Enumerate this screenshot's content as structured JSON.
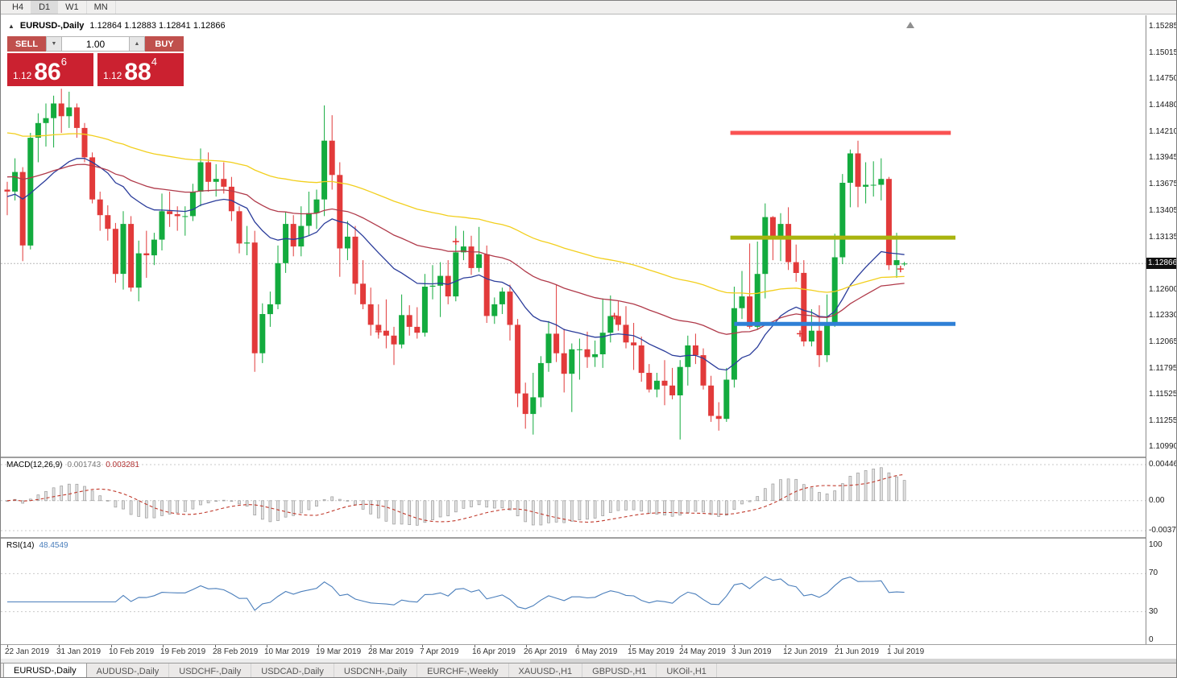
{
  "toolbar": {
    "timeframes": [
      "H4",
      "D1",
      "W1",
      "MN"
    ],
    "active": "D1"
  },
  "chart_header": {
    "collapse_icon": "▲",
    "symbol": "EURUSD-,Daily",
    "ohlc": "1.12864 1.12883 1.12841 1.12866"
  },
  "trade_panel": {
    "sell_label": "SELL",
    "buy_label": "BUY",
    "volume_value": "1.00",
    "spin_down_icon": "▼",
    "spin_up_icon": "▲",
    "sell_price": {
      "small": "1.12",
      "big": "86",
      "sup": "6"
    },
    "buy_price": {
      "small": "1.12",
      "big": "88",
      "sup": "4"
    }
  },
  "tabs": {
    "items": [
      "EURUSD-,Daily",
      "AUDUSD-,Daily",
      "USDCHF-,Daily",
      "USDCAD-,Daily",
      "USDCNH-,Daily",
      "EURCHF-,Weekly",
      "XAUUSD-,H1",
      "GBPUSD-,H1",
      "UKOil-,H1"
    ],
    "active_index": 0
  },
  "colors": {
    "bull": "#13ab3e",
    "bear": "#e23a3a",
    "ma_fast": "#2b3d9b",
    "ma_mid": "#b03a4a",
    "ma_slow": "#f2cf1d",
    "level_resistance": "#fa5252",
    "level_mid": "#a9b40e",
    "level_support": "#2f80d6",
    "macd_signal": "#c0392b",
    "rsi_line": "#4a7ebb",
    "marker": "#e03131"
  },
  "chart_data": {
    "type": "candlestick",
    "symbol": "EURUSD-",
    "timeframe": "Daily",
    "ohlc_display": {
      "open": "1.12864",
      "high": "1.12883",
      "low": "1.12841",
      "close": "1.12866"
    },
    "current_price": 1.12866,
    "y_axis": {
      "max": 1.154,
      "min": 1.1092,
      "current_label": "1.12866",
      "tick_labels": [
        "1.15285",
        "1.15015",
        "1.14750",
        "1.14480",
        "1.14210",
        "1.13945",
        "1.13675",
        "1.13405",
        "1.13135",
        "1.12600",
        "1.12330",
        "1.12065",
        "1.11795",
        "1.11525",
        "1.11255",
        "1.10990"
      ]
    },
    "x_axis": {
      "tick_labels": [
        "22 Jan 2019",
        "31 Jan 2019",
        "10 Feb 2019",
        "19 Feb 2019",
        "28 Feb 2019",
        "10 Mar 2019",
        "19 Mar 2019",
        "28 Mar 2019",
        "7 Apr 2019",
        "16 Apr 2019",
        "26 Apr 2019",
        "6 May 2019",
        "15 May 2019",
        "24 May 2019",
        "3 Jun 2019",
        "12 Jun 2019",
        "21 Jun 2019",
        "1 Jul 2019"
      ]
    },
    "candles": [
      [
        1.1362,
        1.137,
        1.1336,
        1.136
      ],
      [
        1.136,
        1.1394,
        1.1351,
        1.138
      ],
      [
        1.138,
        1.1385,
        1.1289,
        1.1305
      ],
      [
        1.1305,
        1.142,
        1.1301,
        1.1415
      ],
      [
        1.1415,
        1.144,
        1.139,
        1.143
      ],
      [
        1.143,
        1.145,
        1.1406,
        1.1435
      ],
      [
        1.1435,
        1.1458,
        1.1405,
        1.145
      ],
      [
        1.145,
        1.1465,
        1.142,
        1.1437
      ],
      [
        1.1437,
        1.1462,
        1.1425,
        1.1446
      ],
      [
        1.1446,
        1.145,
        1.1415,
        1.1425
      ],
      [
        1.1425,
        1.143,
        1.139,
        1.1395
      ],
      [
        1.1395,
        1.14,
        1.1348,
        1.1352
      ],
      [
        1.1352,
        1.136,
        1.132,
        1.1336
      ],
      [
        1.1336,
        1.1346,
        1.131,
        1.1322
      ],
      [
        1.1322,
        1.1328,
        1.1267,
        1.1276
      ],
      [
        1.1276,
        1.134,
        1.126,
        1.1327
      ],
      [
        1.1327,
        1.1335,
        1.1258,
        1.1262
      ],
      [
        1.1262,
        1.131,
        1.1248,
        1.1297
      ],
      [
        1.1297,
        1.132,
        1.1272,
        1.1295
      ],
      [
        1.1295,
        1.1318,
        1.1285,
        1.1311
      ],
      [
        1.1311,
        1.1358,
        1.13,
        1.134
      ],
      [
        1.134,
        1.136,
        1.1324,
        1.1337
      ],
      [
        1.1337,
        1.1345,
        1.132,
        1.1335
      ],
      [
        1.1335,
        1.1345,
        1.1315,
        1.1335
      ],
      [
        1.1335,
        1.1368,
        1.133,
        1.136
      ],
      [
        1.136,
        1.1404,
        1.1345,
        1.139
      ],
      [
        1.139,
        1.14,
        1.136,
        1.137
      ],
      [
        1.137,
        1.1388,
        1.1355,
        1.1373
      ],
      [
        1.1373,
        1.139,
        1.1358,
        1.1365
      ],
      [
        1.1365,
        1.1375,
        1.133,
        1.134
      ],
      [
        1.134,
        1.1345,
        1.1297,
        1.1307
      ],
      [
        1.1307,
        1.1325,
        1.1295,
        1.1308
      ],
      [
        1.1308,
        1.132,
        1.1176,
        1.1195
      ],
      [
        1.1195,
        1.1246,
        1.1185,
        1.1235
      ],
      [
        1.1235,
        1.1258,
        1.1222,
        1.1245
      ],
      [
        1.1245,
        1.1305,
        1.124,
        1.1287
      ],
      [
        1.1287,
        1.1339,
        1.1277,
        1.1327
      ],
      [
        1.1327,
        1.1336,
        1.1294,
        1.1304
      ],
      [
        1.1304,
        1.1345,
        1.1294,
        1.1325
      ],
      [
        1.1325,
        1.136,
        1.1315,
        1.1338
      ],
      [
        1.1338,
        1.1362,
        1.1322,
        1.1352
      ],
      [
        1.1352,
        1.1448,
        1.1335,
        1.1412
      ],
      [
        1.1412,
        1.1438,
        1.1362,
        1.1377
      ],
      [
        1.1377,
        1.139,
        1.1273,
        1.1302
      ],
      [
        1.1302,
        1.133,
        1.129,
        1.1314
      ],
      [
        1.1314,
        1.1325,
        1.1255,
        1.1266
      ],
      [
        1.1266,
        1.129,
        1.124,
        1.1245
      ],
      [
        1.1245,
        1.1262,
        1.1213,
        1.1224
      ],
      [
        1.1224,
        1.1245,
        1.121,
        1.1218
      ],
      [
        1.1218,
        1.125,
        1.12,
        1.1213
      ],
      [
        1.1213,
        1.1222,
        1.1183,
        1.1204
      ],
      [
        1.1204,
        1.1255,
        1.12,
        1.1234
      ],
      [
        1.1234,
        1.1244,
        1.1213,
        1.1222
      ],
      [
        1.1222,
        1.1242,
        1.121,
        1.1216
      ],
      [
        1.1216,
        1.1276,
        1.1212,
        1.1263
      ],
      [
        1.1263,
        1.1285,
        1.125,
        1.1264
      ],
      [
        1.1264,
        1.1288,
        1.1232,
        1.1274
      ],
      [
        1.1274,
        1.129,
        1.1245,
        1.1253
      ],
      [
        1.1253,
        1.1325,
        1.1248,
        1.1298
      ],
      [
        1.1298,
        1.132,
        1.129,
        1.1304
      ],
      [
        1.1304,
        1.1315,
        1.1275,
        1.1282
      ],
      [
        1.1282,
        1.1324,
        1.1278,
        1.1296
      ],
      [
        1.1296,
        1.1305,
        1.1226,
        1.1233
      ],
      [
        1.1233,
        1.1252,
        1.1225,
        1.1245
      ],
      [
        1.1245,
        1.1262,
        1.1235,
        1.1258
      ],
      [
        1.1258,
        1.1265,
        1.1208,
        1.1224
      ],
      [
        1.1224,
        1.123,
        1.114,
        1.1154
      ],
      [
        1.1154,
        1.1165,
        1.1118,
        1.1133
      ],
      [
        1.1133,
        1.1175,
        1.1112,
        1.115
      ],
      [
        1.115,
        1.1192,
        1.114,
        1.1185
      ],
      [
        1.1185,
        1.1228,
        1.1176,
        1.1215
      ],
      [
        1.1215,
        1.1265,
        1.1186,
        1.1195
      ],
      [
        1.1195,
        1.122,
        1.1155,
        1.1174
      ],
      [
        1.1174,
        1.1205,
        1.1135,
        1.1199
      ],
      [
        1.1199,
        1.121,
        1.1168,
        1.1199
      ],
      [
        1.1199,
        1.1217,
        1.118,
        1.1191
      ],
      [
        1.1191,
        1.1208,
        1.1181,
        1.1194
      ],
      [
        1.1194,
        1.1251,
        1.118,
        1.1216
      ],
      [
        1.1216,
        1.1254,
        1.1206,
        1.1233
      ],
      [
        1.1233,
        1.1248,
        1.1218,
        1.1224
      ],
      [
        1.1224,
        1.1243,
        1.12,
        1.1206
      ],
      [
        1.1206,
        1.1226,
        1.1178,
        1.1203
      ],
      [
        1.1203,
        1.1212,
        1.1166,
        1.1175
      ],
      [
        1.1175,
        1.1184,
        1.1155,
        1.1158
      ],
      [
        1.1158,
        1.1175,
        1.115,
        1.1167
      ],
      [
        1.1167,
        1.1188,
        1.1142,
        1.1162
      ],
      [
        1.1162,
        1.118,
        1.1148,
        1.1152
      ],
      [
        1.1152,
        1.1188,
        1.1107,
        1.1181
      ],
      [
        1.1181,
        1.1213,
        1.1162,
        1.1203
      ],
      [
        1.1203,
        1.1215,
        1.1184,
        1.1193
      ],
      [
        1.1193,
        1.12,
        1.1158,
        1.1162
      ],
      [
        1.1162,
        1.1172,
        1.1125,
        1.1131
      ],
      [
        1.1131,
        1.1145,
        1.1116,
        1.1128
      ],
      [
        1.1128,
        1.118,
        1.1125,
        1.1168
      ],
      [
        1.1168,
        1.1263,
        1.116,
        1.1241
      ],
      [
        1.1241,
        1.1279,
        1.123,
        1.1253
      ],
      [
        1.1253,
        1.1307,
        1.122,
        1.1222
      ],
      [
        1.1222,
        1.1309,
        1.1219,
        1.1276
      ],
      [
        1.1276,
        1.1348,
        1.1251,
        1.1334
      ],
      [
        1.1334,
        1.1335,
        1.129,
        1.1312
      ],
      [
        1.1312,
        1.1338,
        1.1289,
        1.1327
      ],
      [
        1.1327,
        1.1344,
        1.128,
        1.1288
      ],
      [
        1.1288,
        1.1306,
        1.1268,
        1.1277
      ],
      [
        1.1277,
        1.129,
        1.1202,
        1.1207
      ],
      [
        1.1207,
        1.124,
        1.1202,
        1.1218
      ],
      [
        1.1218,
        1.1244,
        1.1181,
        1.1193
      ],
      [
        1.1193,
        1.1255,
        1.1186,
        1.1226
      ],
      [
        1.1226,
        1.1317,
        1.1222,
        1.1293
      ],
      [
        1.1293,
        1.1378,
        1.1286,
        1.1369
      ],
      [
        1.1369,
        1.1403,
        1.1344,
        1.1399
      ],
      [
        1.1399,
        1.1412,
        1.1344,
        1.1365
      ],
      [
        1.1365,
        1.139,
        1.1348,
        1.1367
      ],
      [
        1.1367,
        1.1391,
        1.1355,
        1.1367
      ],
      [
        1.1367,
        1.1394,
        1.1351,
        1.1373
      ],
      [
        1.1373,
        1.1375,
        1.128,
        1.1285
      ],
      [
        1.1285,
        1.1318,
        1.1272,
        1.129
      ],
      [
        1.12864,
        1.12883,
        1.12841,
        1.12866
      ]
    ],
    "moving_averages": [
      {
        "type": "ema",
        "period": 20,
        "seed": 1.1355,
        "color_key": "ma_fast"
      },
      {
        "type": "ema",
        "period": 50,
        "seed": 1.1375,
        "color_key": "ma_mid"
      },
      {
        "type": "ema",
        "period": 90,
        "seed": 1.142,
        "color_key": "ma_slow"
      }
    ],
    "levels": [
      {
        "name": "resistance-line",
        "price": 1.142,
        "from_index": 93.5,
        "to_index": 122.0,
        "color_key": "level_resistance"
      },
      {
        "name": "mid-line",
        "price": 1.1313,
        "from_index": 93.5,
        "to_index": 122.6,
        "color_key": "level_mid"
      },
      {
        "name": "support-line",
        "price": 1.1225,
        "from_index": 94.0,
        "to_index": 122.6,
        "color_key": "level_support"
      }
    ],
    "markers": [
      {
        "index": 48,
        "price": 1.1217
      },
      {
        "index": 58,
        "price": 1.1309
      },
      {
        "index": 78.5,
        "price": 1.1233
      },
      {
        "index": 102.5,
        "price": 1.1215
      },
      {
        "index": 115.5,
        "price": 1.1281
      }
    ],
    "indicators": {
      "macd": {
        "fast": 12,
        "slow": 26,
        "signal": 9,
        "name": "MACD(12,26,9)",
        "main_value": "0.001743",
        "signal_value": "0.003281",
        "axis_labels": [
          "0.004465",
          "0.00",
          "-0.003715"
        ],
        "axis_values": [
          0.004465,
          0,
          -0.003715
        ]
      },
      "rsi": {
        "period": 14,
        "name": "RSI(14)",
        "value_label": "48.4549",
        "axis_labels": [
          "100",
          "70",
          "30",
          "0"
        ],
        "axis_values": [
          100,
          70,
          30,
          0
        ],
        "levels": [
          70,
          30
        ]
      }
    }
  }
}
